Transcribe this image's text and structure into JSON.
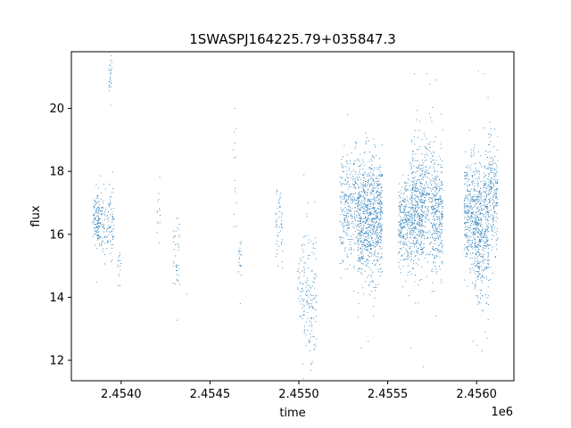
{
  "chart_data": {
    "type": "scatter",
    "title": "1SWASPJ164225.79+035847.3",
    "xlabel": "time",
    "ylabel": "flux",
    "x_offset_label": "1e6",
    "x_multiplier": 1000000,
    "xlim": [
      2.45372,
      2.45621
    ],
    "ylim": [
      11.35,
      21.8
    ],
    "x_ticks": [
      2.454,
      2.4545,
      2.455,
      2.4555,
      2.456
    ],
    "x_tick_labels": [
      "2.4540",
      "2.4545",
      "2.4550",
      "2.4555",
      "2.4560"
    ],
    "y_ticks": [
      12,
      14,
      16,
      18,
      20
    ],
    "y_tick_labels": [
      "12",
      "14",
      "16",
      "18",
      "20"
    ],
    "grid": false,
    "marker_color": "#1f77b4",
    "clusters": [
      {
        "x": 2.45386,
        "width": 2e-05,
        "y_center": 16.5,
        "y_spread": 0.35,
        "n": 90
      },
      {
        "x": 2.45391,
        "width": 5e-05,
        "y_center": 16.4,
        "y_spread": 0.55,
        "n": 160
      },
      {
        "x": 2.45394,
        "width": 1e-05,
        "y_center": 21.0,
        "y_spread": 0.35,
        "n": 30
      },
      {
        "x": 2.45399,
        "width": 1e-05,
        "y_center": 14.8,
        "y_spread": 0.45,
        "n": 15
      },
      {
        "x": 2.45421,
        "width": 1e-05,
        "y_center": 16.7,
        "y_spread": 0.4,
        "n": 14
      },
      {
        "x": 2.45431,
        "width": 2e-05,
        "y_center": 15.3,
        "y_spread": 0.7,
        "n": 40
      },
      {
        "x": 2.45464,
        "width": 1e-05,
        "y_center": 17.5,
        "y_spread": 1.2,
        "n": 12
      },
      {
        "x": 2.45467,
        "width": 1e-05,
        "y_center": 15.2,
        "y_spread": 0.4,
        "n": 20
      },
      {
        "x": 2.45489,
        "width": 2e-05,
        "y_center": 16.2,
        "y_spread": 0.5,
        "n": 55
      },
      {
        "x": 2.45501,
        "width": 2e-05,
        "y_center": 14.5,
        "y_spread": 0.6,
        "n": 30
      },
      {
        "x": 2.45506,
        "width": 4e-05,
        "y_center": 13.9,
        "y_spread": 1.3,
        "n": 150
      },
      {
        "x": 2.45527,
        "width": 1e-05,
        "y_center": 16.6,
        "y_spread": 0.4,
        "n": 14
      },
      {
        "x": 2.45535,
        "width": 0.00012,
        "y_center": 16.8,
        "y_spread": 0.95,
        "n": 700
      },
      {
        "x": 2.4554,
        "width": 7e-05,
        "y_center": 16.2,
        "y_spread": 0.85,
        "n": 450
      },
      {
        "x": 2.45563,
        "width": 7e-05,
        "y_center": 16.3,
        "y_spread": 0.75,
        "n": 500
      },
      {
        "x": 2.45572,
        "width": 9e-05,
        "y_center": 17.2,
        "y_spread": 1.0,
        "n": 550
      },
      {
        "x": 2.45578,
        "width": 3e-05,
        "y_center": 16.2,
        "y_spread": 0.8,
        "n": 150
      },
      {
        "x": 2.45598,
        "width": 5e-05,
        "y_center": 16.6,
        "y_spread": 0.9,
        "n": 450
      },
      {
        "x": 2.45603,
        "width": 4e-05,
        "y_center": 15.6,
        "y_spread": 1.0,
        "n": 250
      },
      {
        "x": 2.45608,
        "width": 4e-05,
        "y_center": 17.2,
        "y_spread": 0.95,
        "n": 300
      }
    ],
    "outliers": [
      {
        "x": 2.45464,
        "y": 20.0
      },
      {
        "x": 2.45464,
        "y": 18.9
      },
      {
        "x": 2.45467,
        "y": 13.8
      },
      {
        "x": 2.45437,
        "y": 14.1
      },
      {
        "x": 2.45535,
        "y": 12.4
      },
      {
        "x": 2.45536,
        "y": 14.3
      },
      {
        "x": 2.45539,
        "y": 12.6
      },
      {
        "x": 2.45542,
        "y": 13.4
      },
      {
        "x": 2.45531,
        "y": 14.2
      },
      {
        "x": 2.45565,
        "y": 21.1
      },
      {
        "x": 2.45572,
        "y": 21.1
      },
      {
        "x": 2.45577,
        "y": 20.9
      },
      {
        "x": 2.45563,
        "y": 12.4
      },
      {
        "x": 2.4557,
        "y": 11.8
      },
      {
        "x": 2.45577,
        "y": 13.4
      },
      {
        "x": 2.45601,
        "y": 21.2
      },
      {
        "x": 2.45604,
        "y": 21.1
      },
      {
        "x": 2.45598,
        "y": 12.6
      },
      {
        "x": 2.45603,
        "y": 12.3
      },
      {
        "x": 2.45606,
        "y": 12.7
      },
      {
        "x": 2.45605,
        "y": 12.9
      },
      {
        "x": 2.45596,
        "y": 19.3
      }
    ]
  }
}
